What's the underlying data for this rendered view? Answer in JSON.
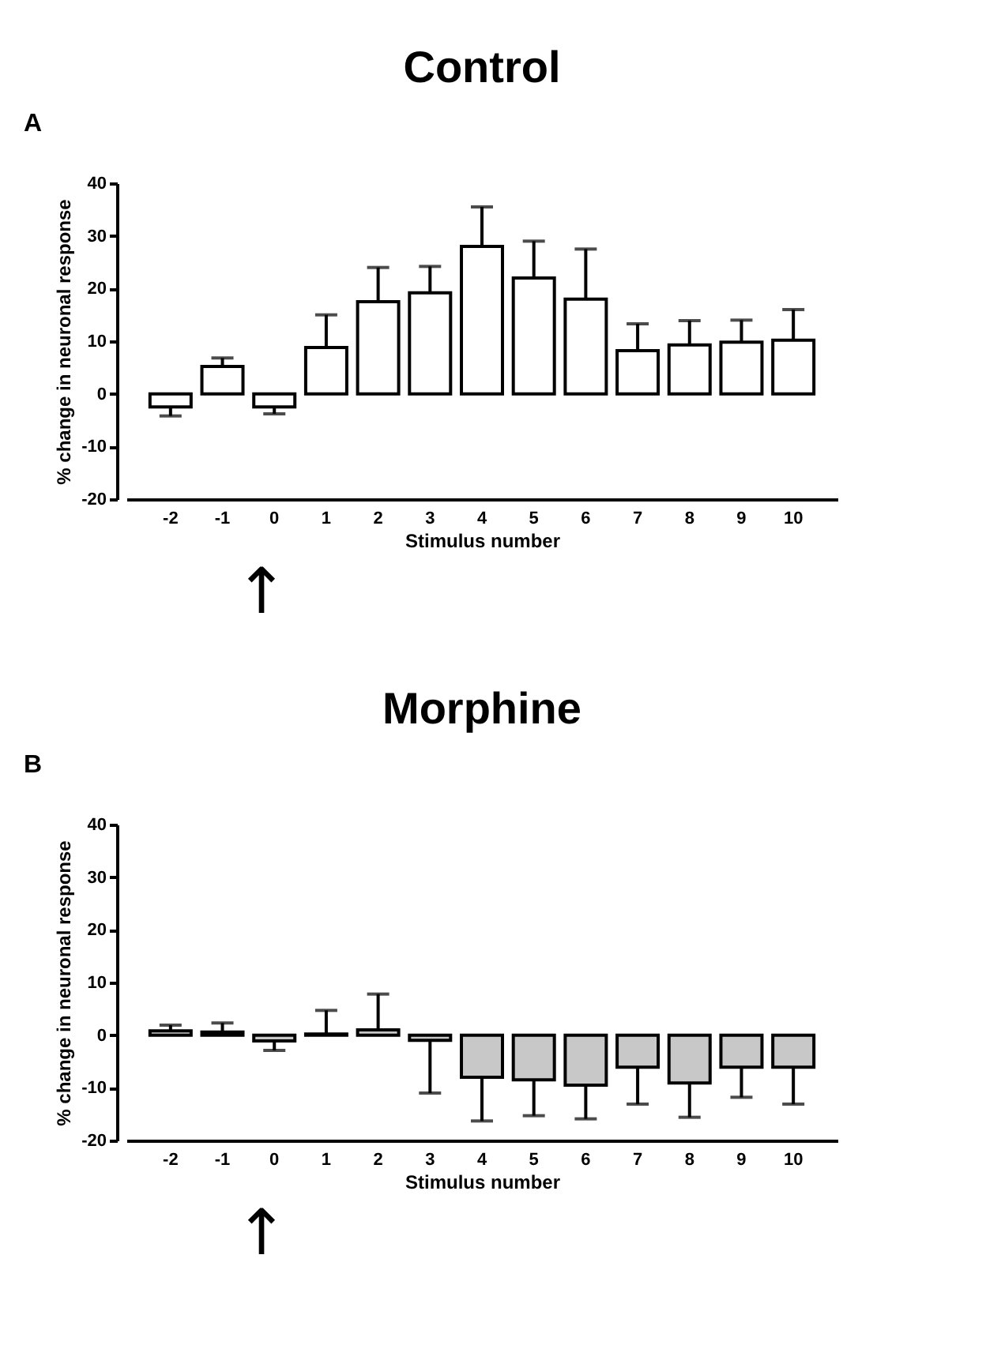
{
  "chart_data": [
    {
      "type": "bar",
      "title": "Control",
      "xlabel": "Stimulus number",
      "ylabel": "% change in neuronal response",
      "color": "#ffffff",
      "categories": [
        "-2",
        "-1",
        "0",
        "1",
        "2",
        "3",
        "4",
        "5",
        "6",
        "7",
        "8",
        "9",
        "10"
      ],
      "values": [
        -2.5,
        5.2,
        -2.5,
        8.8,
        17.5,
        19.2,
        28,
        22,
        18,
        8.2,
        9.3,
        9.8,
        10.2
      ],
      "errors": [
        [
          -4.2,
          -2.5
        ],
        [
          5.2,
          6.8
        ],
        [
          -3.8,
          -2.5
        ],
        [
          8.8,
          15
        ],
        [
          17.5,
          24
        ],
        [
          19.2,
          24.2
        ],
        [
          28,
          35.5
        ],
        [
          22,
          29
        ],
        [
          18,
          27.5
        ],
        [
          8.2,
          13.3
        ],
        [
          9.3,
          13.9
        ],
        [
          9.8,
          14
        ],
        [
          10.2,
          16
        ]
      ],
      "ylim": [
        -20,
        40
      ],
      "yticks": [
        -20,
        -10,
        0,
        10,
        20,
        30,
        40
      ],
      "grid": false,
      "annotations": [
        "A",
        "↑"
      ]
    },
    {
      "type": "bar",
      "title": "Morphine",
      "xlabel": "Stimulus number",
      "ylabel": "% change in neuronal response",
      "color": "#c8c8c8",
      "categories": [
        "-2",
        "-1",
        "0",
        "1",
        "2",
        "3",
        "4",
        "5",
        "6",
        "7",
        "8",
        "9",
        "10"
      ],
      "values": [
        0.8,
        0.6,
        -1.1,
        0.2,
        1.0,
        -1.0,
        -8,
        -8.5,
        -9.5,
        -6.1,
        -9.1,
        -6.1,
        -6.1
      ],
      "errors": [
        [
          0.8,
          1.9
        ],
        [
          0.6,
          2.3
        ],
        [
          -2.9,
          -1.1
        ],
        [
          0.2,
          4.7
        ],
        [
          1.0,
          7.8
        ],
        [
          -11,
          -1.0
        ],
        [
          -16.3,
          -8
        ],
        [
          -15.3,
          -8.5
        ],
        [
          -15.9,
          -9.5
        ],
        [
          -13.1,
          -6.1
        ],
        [
          -15.6,
          -9.1
        ],
        [
          -11.8,
          -6.1
        ],
        [
          -13.1,
          -6.1
        ]
      ],
      "ylim": [
        -20,
        40
      ],
      "yticks": [
        -20,
        -10,
        0,
        10,
        20,
        30,
        40
      ],
      "grid": false,
      "annotations": [
        "B",
        "↑"
      ]
    }
  ]
}
